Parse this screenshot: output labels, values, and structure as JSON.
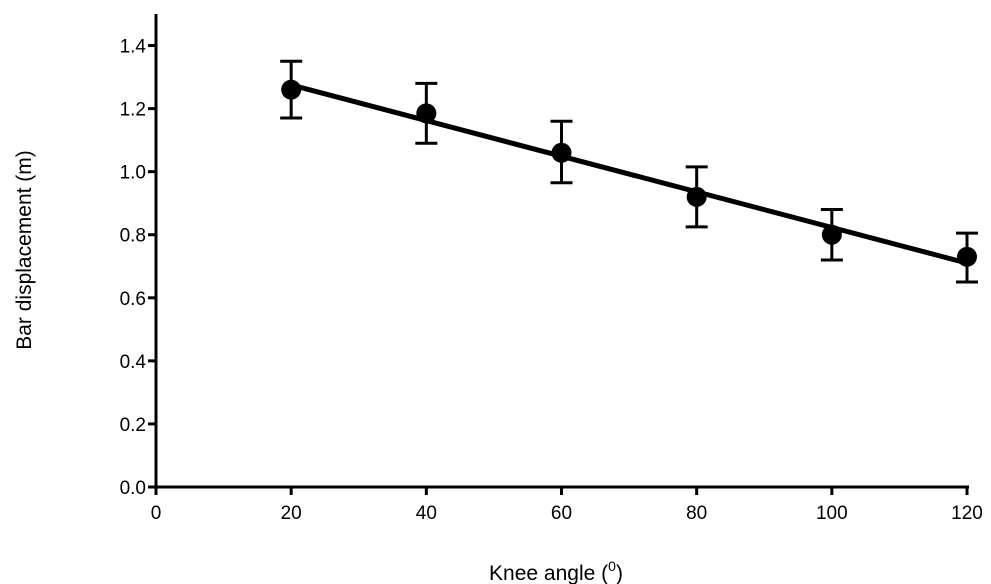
{
  "chart_data": {
    "type": "scatter",
    "title": "",
    "xlabel": "Knee angle (",
    "xlabel_sup": "0",
    "xlabel_suffix": ")",
    "ylabel": "Bar displacement (m)",
    "xlim": [
      0,
      120
    ],
    "ylim": [
      0,
      1.5
    ],
    "xticks": [
      0,
      20,
      40,
      60,
      80,
      100,
      120
    ],
    "xtick_labels": [
      "0",
      "20",
      "40",
      "60",
      "80",
      "100",
      "120"
    ],
    "yticks": [
      0,
      0.2,
      0.4,
      0.6,
      0.8,
      1.0,
      1.2,
      1.4
    ],
    "ytick_labels": [
      "0.0",
      "0.2",
      "0.4",
      "0.6",
      "0.8",
      "1.0",
      "1.2",
      "1.4"
    ],
    "grid": false,
    "series": [
      {
        "x": [
          20,
          40,
          60,
          80,
          100,
          120
        ],
        "y": [
          1.26,
          1.185,
          1.06,
          0.92,
          0.8,
          0.73
        ],
        "error_low": [
          1.17,
          1.09,
          0.965,
          0.825,
          0.72,
          0.65
        ],
        "error_high": [
          1.35,
          1.28,
          1.16,
          1.015,
          0.88,
          0.805
        ]
      }
    ],
    "fit_line": {
      "x": [
        20,
        120
      ],
      "y": [
        1.275,
        0.71
      ]
    },
    "colors": {
      "marker": "#000000",
      "line": "#000000"
    }
  }
}
